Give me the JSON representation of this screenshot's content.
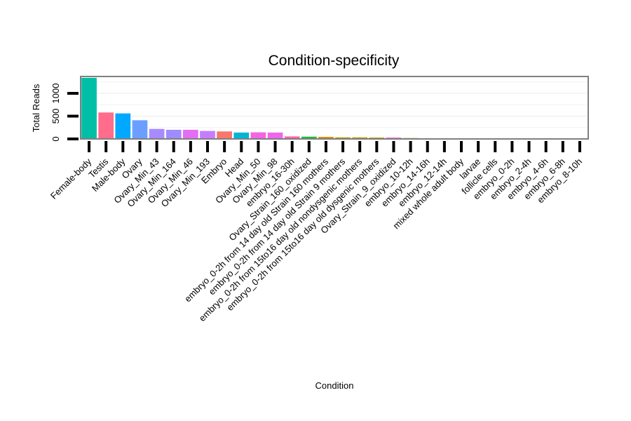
{
  "chart_data": {
    "type": "bar",
    "title": "Condition-specificity",
    "xlabel": "Condition",
    "ylabel": "Total Reads",
    "ylim": [
      0,
      1370
    ],
    "yticks": [
      0,
      500,
      1000
    ],
    "ytick_labels": [
      "0",
      "500",
      "1000"
    ],
    "grid": true,
    "legend": "none",
    "categories": [
      "Female-body",
      "Testis",
      "Male-body",
      "Ovary",
      "Ovary_Min_43",
      "Ovary_Min_164",
      "Ovary_Min_46",
      "Ovary_Min_193",
      "Embryo",
      "Head",
      "Ovary_Min_50",
      "Ovary_Min_98",
      "embryo_16-30h",
      "Ovary_Strain_160_oxidized",
      "embryo_0-2h from 14 day old Strain 160 mothers",
      "embryo_0-2h from 14 day old Strain 9 mothers",
      "embryo_0-2h from 15to16 day old nondysgenic mothers",
      "embryo_0-2h from 15to16 day old dysgenic mothers",
      "Ovary_Strain_9_oxidized",
      "embryo_10-12h",
      "embryo_14-16h",
      "embryo_12-14h",
      "mixed whole adult body",
      "larvae",
      "follicle cells",
      "embryo_0-2h",
      "embryo_2-4h",
      "embryo_4-6h",
      "embryo_6-8h",
      "embryo_8-10h"
    ],
    "values": [
      1340,
      580,
      560,
      410,
      220,
      200,
      200,
      175,
      165,
      140,
      145,
      140,
      55,
      50,
      45,
      35,
      35,
      30,
      30,
      20,
      15,
      15,
      10,
      5,
      5,
      5,
      5,
      5,
      5,
      5
    ],
    "colors": [
      "#00BFA6",
      "#FF6C8C",
      "#00A9FF",
      "#6B9FFF",
      "#A88BFF",
      "#9F8CFF",
      "#E36EF6",
      "#C77CFF",
      "#F8766D",
      "#00B4D8",
      "#F564E3",
      "#EF67EB",
      "#FF65AC",
      "#1EB941",
      "#D89000",
      "#B79F00",
      "#C59900",
      "#BA9E00",
      "#FC61D5",
      "#7CAE00",
      "#86AC00",
      "#64B200",
      "#00BDD0",
      "#00C08B",
      "#00BA38",
      "#00C1A3",
      "#00BCD8",
      "#00B0F6",
      "#619CFF",
      "#DB72FB"
    ]
  }
}
